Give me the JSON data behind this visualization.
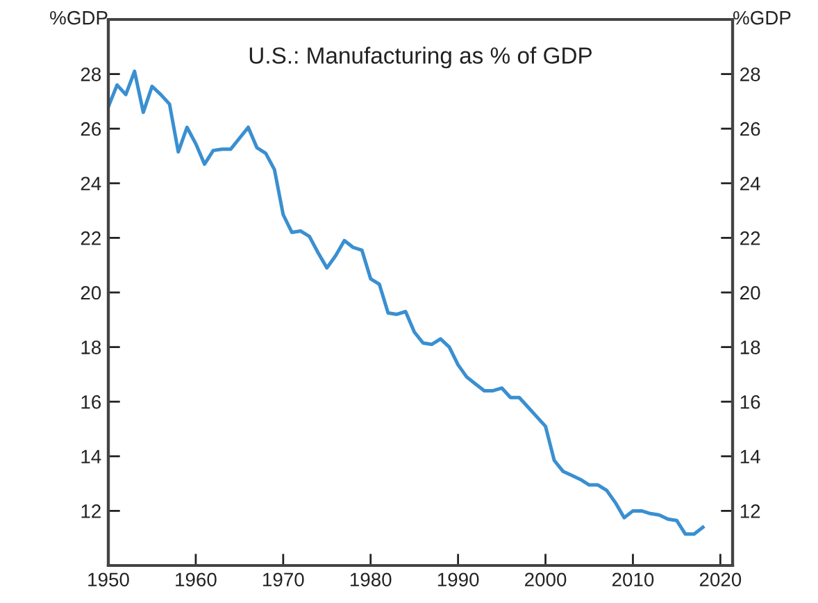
{
  "chart_data": {
    "type": "line",
    "title": "U.S.: Manufacturing as % of GDP",
    "ylabel": "%GDP",
    "y2label": "%GDP",
    "x": [
      1950,
      1951,
      1952,
      1953,
      1954,
      1955,
      1956,
      1957,
      1958,
      1959,
      1960,
      1961,
      1962,
      1963,
      1964,
      1965,
      1966,
      1967,
      1968,
      1969,
      1970,
      1971,
      1972,
      1973,
      1974,
      1975,
      1976,
      1977,
      1978,
      1979,
      1980,
      1981,
      1982,
      1983,
      1984,
      1985,
      1986,
      1987,
      1988,
      1989,
      1990,
      1991,
      1992,
      1993,
      1994,
      1995,
      1996,
      1997,
      1998,
      1999,
      2000,
      2001,
      2002,
      2003,
      2004,
      2005,
      2006,
      2007,
      2008,
      2009,
      2010,
      2011,
      2012,
      2013,
      2014,
      2015,
      2016,
      2017,
      2018
    ],
    "series": [
      {
        "color": "#3a8fd0",
        "values": [
          26.8,
          27.6,
          27.25,
          28.1,
          26.6,
          27.55,
          27.25,
          26.9,
          25.15,
          26.05,
          25.45,
          24.7,
          25.2,
          25.25,
          25.25,
          25.65,
          26.05,
          25.3,
          25.1,
          24.5,
          22.85,
          22.2,
          22.25,
          22.05,
          21.45,
          20.9,
          21.35,
          21.9,
          21.65,
          21.55,
          20.5,
          20.3,
          19.25,
          19.2,
          19.3,
          18.55,
          18.15,
          18.1,
          18.3,
          18.0,
          17.35,
          16.9,
          16.65,
          16.4,
          16.4,
          16.5,
          16.15,
          16.15,
          15.8,
          15.45,
          15.1,
          13.85,
          13.45,
          13.3,
          13.15,
          12.95,
          12.95,
          12.75,
          12.3,
          11.75,
          12.0,
          12.0,
          11.9,
          11.85,
          11.7,
          11.65,
          11.15,
          11.15,
          11.4
        ]
      }
    ],
    "xlim": [
      1950,
      2021.4
    ],
    "xticks": [
      1950,
      1960,
      1970,
      1980,
      1990,
      2000,
      2010,
      2020
    ],
    "ylim": [
      10,
      30
    ],
    "yticks": [
      12,
      14,
      16,
      18,
      20,
      22,
      24,
      26,
      28
    ],
    "y2lim": [
      10,
      30
    ],
    "y2ticks": [
      12,
      14,
      16,
      18,
      20,
      22,
      24,
      26,
      28
    ],
    "grid": false,
    "legend": false,
    "marker": "none",
    "line_style": "solid"
  }
}
